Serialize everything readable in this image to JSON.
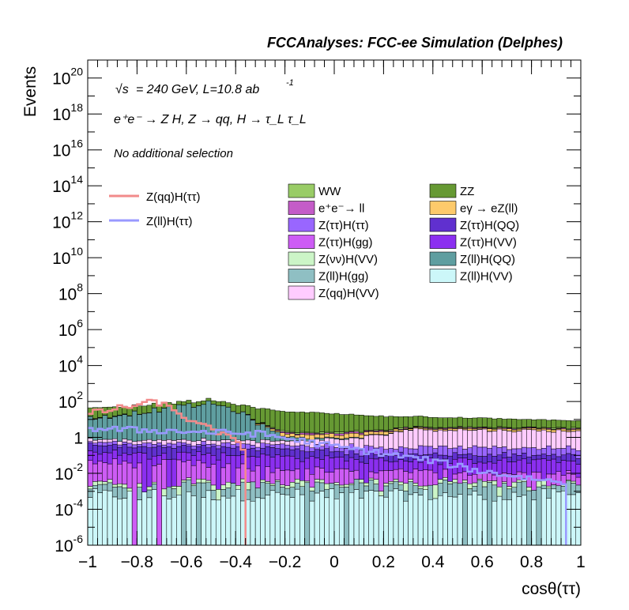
{
  "header": {
    "title": "FCCAnalyses: FCC-ee Simulation (Delphes)"
  },
  "annotations": {
    "sqrt_s_symbol": "√s",
    "energy_lumi": "= 240 GeV, L=10.8 ab",
    "lumi_exponent": "-1",
    "process": "e⁺e⁻ → Z H, Z → qq, H → τ_L τ_L",
    "selection": "No additional selection"
  },
  "chart_data": {
    "type": "bar",
    "stacked": true,
    "histogram": true,
    "title": "FCCAnalyses: FCC-ee Simulation (Delphes)",
    "xlabel": "cosθ(ττ)",
    "ylabel": "Events",
    "xlim": [
      -1,
      1
    ],
    "ylim_log10": [
      -6,
      21
    ],
    "yscale": "log",
    "n_bins": 100,
    "xticks": [
      "−1",
      "−0.8",
      "−0.6",
      "−0.4",
      "−0.2",
      "0",
      "0.2",
      "0.4",
      "0.6",
      "0.8",
      "1"
    ],
    "xtick_values": [
      -1,
      -0.8,
      -0.6,
      -0.4,
      -0.2,
      0,
      0.2,
      0.4,
      0.6,
      0.8,
      1
    ],
    "yticks": [
      {
        "log": 20,
        "mant": "10",
        "exp": "20"
      },
      {
        "log": 18,
        "mant": "10",
        "exp": "18"
      },
      {
        "log": 16,
        "mant": "10",
        "exp": "16"
      },
      {
        "log": 14,
        "mant": "10",
        "exp": "14"
      },
      {
        "log": 12,
        "mant": "10",
        "exp": "12"
      },
      {
        "log": 10,
        "mant": "10",
        "exp": "10"
      },
      {
        "log": 8,
        "mant": "10",
        "exp": "8"
      },
      {
        "log": 6,
        "mant": "10",
        "exp": "6"
      },
      {
        "log": 4,
        "mant": "10",
        "exp": "4"
      },
      {
        "log": 2,
        "mant": "10",
        "exp": "2"
      },
      {
        "log": 0,
        "mant": "1",
        "exp": ""
      },
      {
        "log": -2,
        "mant": "10",
        "exp": "-2"
      },
      {
        "log": -4,
        "mant": "10",
        "exp": "-4"
      },
      {
        "log": -6,
        "mant": "10",
        "exp": "-6"
      }
    ],
    "stack_series": [
      {
        "name": "Z(ll)H(VV)",
        "color": "#ccf7f9",
        "profile": [
          [
            -1,
            -3.2
          ],
          [
            1,
            -3.2
          ]
        ],
        "noise": 0.35,
        "occupancy": 0.85
      },
      {
        "name": "Z(ll)H(gg)",
        "color": "#8fbfc3",
        "profile": [
          [
            -1,
            -2.8
          ],
          [
            1,
            -2.8
          ]
        ],
        "noise": 0.35,
        "occupancy": 0.85
      },
      {
        "name": "Z(νν)H(VV)",
        "color": "#ccf5c7",
        "profile": [
          [
            -1,
            -3.0
          ],
          [
            1,
            -3.0
          ]
        ],
        "noise": 0.35,
        "occupancy": 0.85
      },
      {
        "name": "Z(ττ)H(gg)",
        "color": "#cd5cf5",
        "profile": [
          [
            -1,
            -1.4
          ],
          [
            -0.6,
            -1.5
          ],
          [
            -0.35,
            -1.8
          ],
          [
            0,
            -2.0
          ],
          [
            1,
            -2.2
          ]
        ],
        "noise": 0.25,
        "occupancy": 0.85
      },
      {
        "name": "Z(ττ)H(VV)",
        "color": "#8b2ff0",
        "profile": [
          [
            -1,
            -1.0
          ],
          [
            -0.3,
            -1.1
          ],
          [
            0.2,
            -1.4
          ],
          [
            1,
            -1.4
          ]
        ],
        "noise": 0.2,
        "occupancy": 1.0
      },
      {
        "name": "Z(ττ)H(QQ)",
        "color": "#6030cf",
        "profile": [
          [
            -1,
            -0.7
          ],
          [
            -0.3,
            -0.8
          ],
          [
            0.2,
            -1.2
          ],
          [
            1,
            -1.3
          ]
        ],
        "noise": 0.2,
        "occupancy": 1.0
      },
      {
        "name": "Z(ττ)H(ττ)",
        "color": "#9966ff",
        "profile": [
          [
            -1,
            -0.8
          ],
          [
            1,
            -0.8
          ]
        ],
        "noise": 0.2,
        "occupancy": 1.0
      },
      {
        "name": "Z(qq)H(VV)",
        "color": "#ffccff",
        "profile": [
          [
            -1,
            -0.6
          ],
          [
            -0.2,
            -0.6
          ],
          [
            0.1,
            -0.2
          ],
          [
            0.3,
            0.4
          ],
          [
            1,
            0.3
          ]
        ],
        "noise": 0.1,
        "occupancy": 1.0
      },
      {
        "name": "Z(ll)H(QQ)",
        "color": "#5f9ea0",
        "profile": [
          [
            -1,
            1.0
          ],
          [
            -0.5,
            1.9
          ],
          [
            -0.4,
            1.5
          ],
          [
            -0.3,
            0.7
          ],
          [
            -0.2,
            -0.3
          ],
          [
            0,
            -1.0
          ],
          [
            1,
            -1.5
          ]
        ],
        "noise": 0.15,
        "occupancy": 1.0
      },
      {
        "name": "eγ → eZ(ll)",
        "color": "#fdca6b",
        "profile": [
          [
            -1,
            -0.3
          ],
          [
            0,
            -0.3
          ],
          [
            1,
            -0.3
          ]
        ],
        "noise": 0.2,
        "occupancy": 1.0
      },
      {
        "name": "e⁺e⁻→ ll",
        "color": "#c45cc8",
        "profile": [
          [
            -1,
            -0.6
          ],
          [
            1,
            -0.6
          ]
        ],
        "noise": 0.2,
        "occupancy": 1.0
      },
      {
        "name": "WW",
        "color": "#99cc66",
        "profile": [
          [
            -1,
            -0.5
          ],
          [
            1,
            -0.5
          ]
        ],
        "noise": 0.2,
        "occupancy": 1.0
      },
      {
        "name": "ZZ",
        "color": "#669933",
        "profile": [
          [
            -1,
            1.5
          ],
          [
            -0.4,
            1.6
          ],
          [
            0.2,
            1.1
          ],
          [
            1,
            0.7
          ]
        ],
        "noise": 0.05,
        "occupancy": 1.0
      }
    ],
    "overlay_series": [
      {
        "name": "Z(qq)H(ττ)",
        "color": "#f28b8b",
        "profile": [
          [
            -1,
            1.3
          ],
          [
            -0.8,
            1.8
          ],
          [
            -0.72,
            2.0
          ],
          [
            -0.62,
            1.3
          ],
          [
            -0.56,
            0.7
          ],
          [
            -0.5,
            0.5
          ],
          [
            -0.45,
            0.2
          ],
          [
            -0.4,
            -0.3
          ],
          [
            -0.365,
            -0.6
          ]
        ],
        "cutoff_x": -0.36
      },
      {
        "name": "Z(ll)H(ττ)",
        "color": "#9999ff",
        "profile": [
          [
            -1,
            0.5
          ],
          [
            -0.3,
            0.2
          ],
          [
            0,
            -0.5
          ],
          [
            0.4,
            -1.3
          ],
          [
            0.6,
            -1.9
          ],
          [
            0.92,
            -2.5
          ]
        ],
        "cutoff_x": 0.94
      }
    ],
    "legend": {
      "placement": "top",
      "overlay_entries": [
        "Z(qq)H(ττ)",
        "Z(ll)H(ττ)"
      ],
      "stack_entries": [
        "WW",
        "ZZ",
        "e⁺e⁻→ ll",
        "eγ → eZ(ll)",
        "Z(ττ)H(ττ)",
        "Z(ττ)H(QQ)",
        "Z(ττ)H(gg)",
        "Z(ττ)H(VV)",
        "Z(νν)H(VV)",
        "Z(ll)H(QQ)",
        "Z(ll)H(gg)",
        "Z(ll)H(VV)",
        "Z(qq)H(VV)"
      ]
    }
  }
}
